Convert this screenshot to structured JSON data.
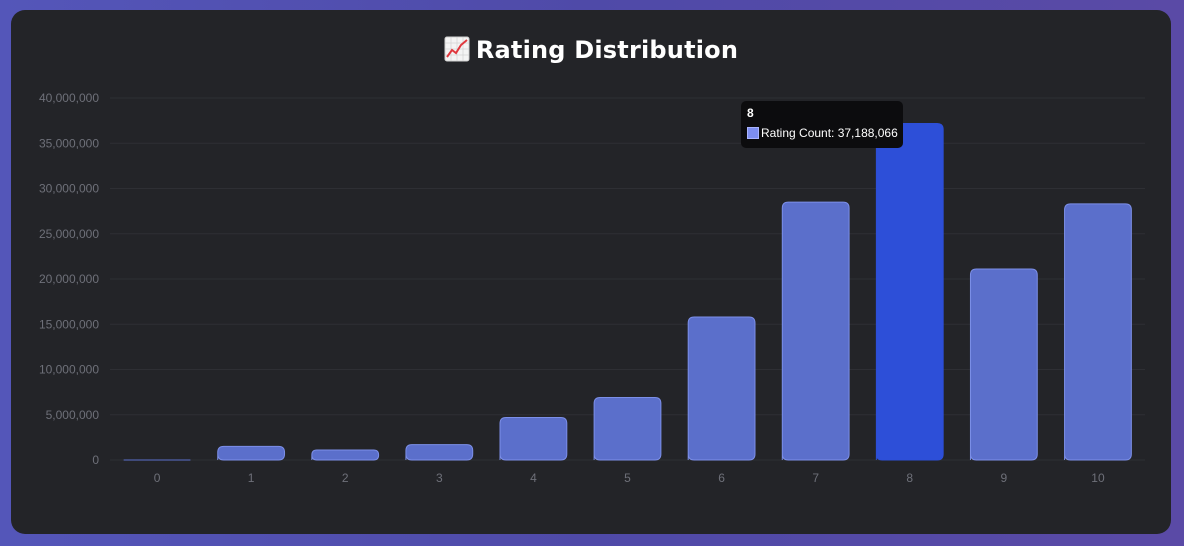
{
  "title": {
    "icon": "chart-increasing-icon",
    "text": "Rating Distribution"
  },
  "colors": {
    "bar": "#5b6fcb",
    "bar_border": "#7c8fe8",
    "bar_active": "#2d4fd8",
    "grid": "#2e2f34",
    "tick": "#6e7079"
  },
  "chart_data": {
    "type": "bar",
    "categories": [
      "0",
      "1",
      "2",
      "3",
      "4",
      "5",
      "6",
      "7",
      "8",
      "9",
      "10"
    ],
    "series": [
      {
        "name": "Rating Count",
        "values": [
          0,
          1500000,
          1100000,
          1700000,
          4700000,
          6900000,
          15800000,
          28500000,
          37188066,
          21100000,
          28300000
        ]
      }
    ],
    "y_ticks": [
      "0",
      "5,000,000",
      "10,000,000",
      "15,000,000",
      "20,000,000",
      "25,000,000",
      "30,000,000",
      "35,000,000",
      "40,000,000"
    ],
    "ylim": [
      0,
      40000000
    ],
    "grid": true,
    "legend": "none",
    "highlighted_index": 8
  },
  "tooltip": {
    "title": "8",
    "label": "Rating Count: 37,188,066"
  }
}
